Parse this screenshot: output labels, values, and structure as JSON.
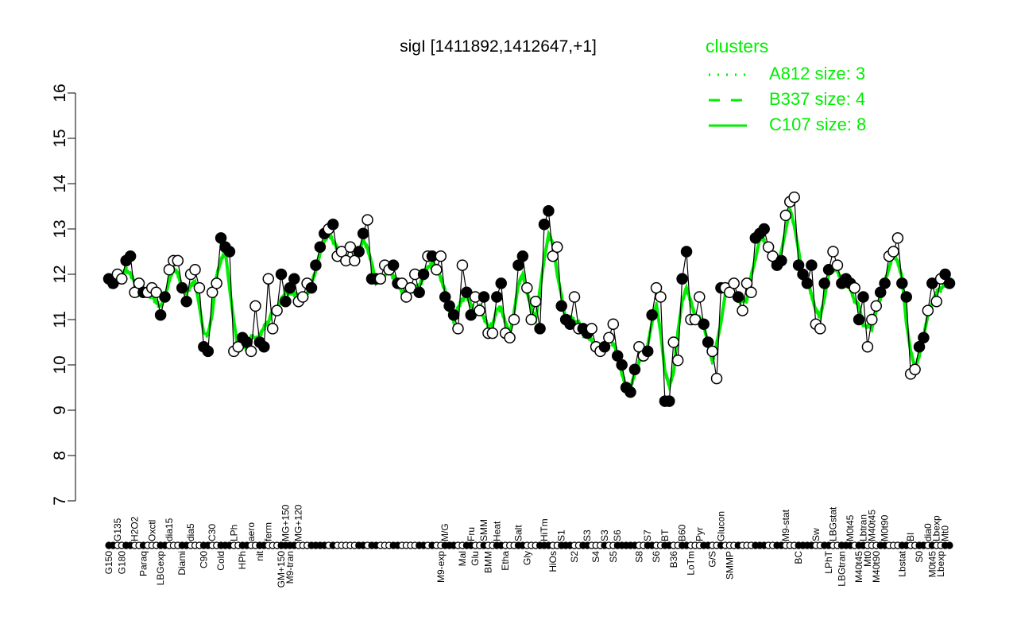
{
  "chart_data": {
    "type": "line",
    "title": "sigI [1411892,1412647,+1]",
    "xlabel": "",
    "ylabel": "",
    "ylim": [
      7,
      16
    ],
    "yticks": [
      7,
      8,
      9,
      10,
      11,
      12,
      13,
      14,
      15,
      16
    ],
    "grid": false,
    "legend": {
      "title": "clusters",
      "placement": "top-right",
      "entries": [
        {
          "label": "A812 size: 3",
          "style": "dotted"
        },
        {
          "label": "B337 size: 4",
          "style": "dashed"
        },
        {
          "label": "C107 size: 8",
          "style": "solid"
        }
      ]
    },
    "colors": {
      "clusters": "#00ee00",
      "points": "#000000"
    },
    "points": [
      [
        11.9,
        1,
        "G150"
      ],
      [
        11.8,
        1,
        ""
      ],
      [
        12.0,
        0,
        "G135"
      ],
      [
        11.9,
        0,
        "G180"
      ],
      [
        12.3,
        1,
        ""
      ],
      [
        12.4,
        1,
        ""
      ],
      [
        11.6,
        0,
        "H2O2"
      ],
      [
        11.8,
        0,
        ""
      ],
      [
        11.6,
        1,
        "Paraq"
      ],
      [
        11.6,
        0,
        ""
      ],
      [
        11.7,
        0,
        "Oxctl"
      ],
      [
        11.6,
        0,
        ""
      ],
      [
        11.1,
        1,
        "LBGexp"
      ],
      [
        11.5,
        1,
        ""
      ],
      [
        12.1,
        0,
        "dia15"
      ],
      [
        12.3,
        0,
        ""
      ],
      [
        12.3,
        0,
        ""
      ],
      [
        11.7,
        1,
        "Diami"
      ],
      [
        11.4,
        1,
        ""
      ],
      [
        12.0,
        0,
        "dia5"
      ],
      [
        12.1,
        0,
        ""
      ],
      [
        11.7,
        0,
        ""
      ],
      [
        10.4,
        1,
        "C90"
      ],
      [
        10.3,
        1,
        ""
      ],
      [
        11.6,
        0,
        "C30"
      ],
      [
        11.8,
        0,
        ""
      ],
      [
        12.8,
        1,
        "Cold"
      ],
      [
        12.6,
        1,
        ""
      ],
      [
        12.5,
        1,
        ""
      ],
      [
        10.3,
        0,
        "LPh"
      ],
      [
        10.4,
        0,
        ""
      ],
      [
        10.6,
        1,
        "HPh"
      ],
      [
        10.5,
        1,
        ""
      ],
      [
        10.3,
        0,
        "aero"
      ],
      [
        11.3,
        0,
        ""
      ],
      [
        10.5,
        1,
        "nit"
      ],
      [
        10.4,
        1,
        ""
      ],
      [
        11.9,
        0,
        "ferm"
      ],
      [
        10.8,
        0,
        ""
      ],
      [
        11.2,
        0,
        ""
      ],
      [
        12.0,
        1,
        "GM+150"
      ],
      [
        11.4,
        1,
        "MG+150"
      ],
      [
        11.7,
        1,
        "M9-tran"
      ],
      [
        11.9,
        1,
        ""
      ],
      [
        11.4,
        0,
        "MG+120"
      ],
      [
        11.5,
        0,
        ""
      ],
      [
        11.8,
        0,
        ""
      ],
      [
        11.7,
        1,
        ""
      ],
      [
        12.2,
        1,
        ""
      ],
      [
        12.6,
        1,
        ""
      ],
      [
        12.9,
        1,
        ""
      ],
      [
        13.0,
        0,
        ""
      ],
      [
        13.1,
        1,
        ""
      ],
      [
        12.4,
        0,
        ""
      ],
      [
        12.5,
        0,
        ""
      ],
      [
        12.3,
        0,
        ""
      ],
      [
        12.6,
        0,
        ""
      ],
      [
        12.3,
        0,
        ""
      ],
      [
        12.5,
        1,
        ""
      ],
      [
        12.9,
        1,
        ""
      ],
      [
        13.2,
        0,
        ""
      ],
      [
        11.9,
        1,
        ""
      ],
      [
        11.9,
        1,
        ""
      ],
      [
        11.9,
        0,
        ""
      ],
      [
        12.2,
        0,
        ""
      ],
      [
        12.1,
        0,
        ""
      ],
      [
        12.2,
        1,
        ""
      ],
      [
        11.8,
        1,
        ""
      ],
      [
        11.8,
        0,
        ""
      ],
      [
        11.5,
        0,
        ""
      ],
      [
        11.7,
        0,
        ""
      ],
      [
        12.0,
        0,
        ""
      ],
      [
        11.6,
        1,
        ""
      ],
      [
        12.0,
        1,
        ""
      ],
      [
        12.4,
        0,
        ""
      ],
      [
        12.4,
        1,
        ""
      ],
      [
        12.1,
        0,
        ""
      ],
      [
        12.4,
        0,
        "M9-exp"
      ],
      [
        11.5,
        1,
        "M/G"
      ],
      [
        11.3,
        1,
        ""
      ],
      [
        11.1,
        1,
        ""
      ],
      [
        10.8,
        0,
        ""
      ],
      [
        12.2,
        0,
        "Mal"
      ],
      [
        11.6,
        1,
        ""
      ],
      [
        11.1,
        1,
        "Fru"
      ],
      [
        11.5,
        0,
        "Glu"
      ],
      [
        11.2,
        0,
        ""
      ],
      [
        11.5,
        1,
        "SMM"
      ],
      [
        10.7,
        0,
        "BMM"
      ],
      [
        10.7,
        0,
        ""
      ],
      [
        11.5,
        1,
        "Heat"
      ],
      [
        11.8,
        1,
        ""
      ],
      [
        10.7,
        0,
        "Etha"
      ],
      [
        10.6,
        0,
        ""
      ],
      [
        11.0,
        0,
        ""
      ],
      [
        12.2,
        1,
        "Salt"
      ],
      [
        12.4,
        1,
        ""
      ],
      [
        11.7,
        0,
        "Gly"
      ],
      [
        11.0,
        0,
        ""
      ],
      [
        11.4,
        0,
        ""
      ],
      [
        10.8,
        1,
        ""
      ],
      [
        13.1,
        1,
        "HiTm"
      ],
      [
        13.4,
        1,
        ""
      ],
      [
        12.4,
        0,
        "HiOs"
      ],
      [
        12.6,
        0,
        ""
      ],
      [
        11.3,
        1,
        "S1"
      ],
      [
        11.0,
        1,
        ""
      ],
      [
        10.9,
        1,
        ""
      ],
      [
        11.5,
        0,
        "S2"
      ],
      [
        10.8,
        0,
        ""
      ],
      [
        10.8,
        1,
        ""
      ],
      [
        10.7,
        1,
        "S3"
      ],
      [
        10.8,
        0,
        ""
      ],
      [
        10.4,
        0,
        "S4"
      ],
      [
        10.3,
        0,
        ""
      ],
      [
        10.4,
        1,
        "S3"
      ],
      [
        10.6,
        0,
        ""
      ],
      [
        10.9,
        0,
        "S5"
      ],
      [
        10.2,
        1,
        "S6"
      ],
      [
        10.0,
        1,
        ""
      ],
      [
        9.5,
        1,
        ""
      ],
      [
        9.4,
        1,
        ""
      ],
      [
        9.9,
        1,
        ""
      ],
      [
        10.4,
        0,
        "S8"
      ],
      [
        10.2,
        0,
        ""
      ],
      [
        10.3,
        1,
        "S7"
      ],
      [
        11.1,
        1,
        ""
      ],
      [
        11.7,
        0,
        "S6"
      ],
      [
        11.5,
        0,
        ""
      ],
      [
        9.2,
        1,
        "BT"
      ],
      [
        9.2,
        1,
        ""
      ],
      [
        10.5,
        0,
        "B36"
      ],
      [
        10.1,
        0,
        ""
      ],
      [
        11.9,
        1,
        "B60"
      ],
      [
        12.5,
        1,
        ""
      ],
      [
        11.0,
        0,
        "LoTm"
      ],
      [
        11.0,
        0,
        ""
      ],
      [
        11.5,
        0,
        "Pyr"
      ],
      [
        10.9,
        1,
        ""
      ],
      [
        10.5,
        1,
        ""
      ],
      [
        10.3,
        0,
        "G/S"
      ],
      [
        9.7,
        0,
        ""
      ],
      [
        11.7,
        1,
        "Glucon"
      ],
      [
        11.7,
        0,
        ""
      ],
      [
        11.6,
        0,
        "SMMP"
      ],
      [
        11.8,
        0,
        ""
      ],
      [
        11.5,
        1,
        ""
      ],
      [
        11.2,
        0,
        ""
      ],
      [
        11.8,
        0,
        ""
      ],
      [
        11.6,
        0,
        ""
      ],
      [
        12.8,
        1,
        ""
      ],
      [
        12.9,
        1,
        ""
      ],
      [
        13.0,
        1,
        ""
      ],
      [
        12.6,
        0,
        ""
      ],
      [
        12.4,
        0,
        ""
      ],
      [
        12.2,
        1,
        ""
      ],
      [
        12.3,
        1,
        ""
      ],
      [
        13.3,
        0,
        "M9-stat"
      ],
      [
        13.6,
        0,
        ""
      ],
      [
        13.7,
        0,
        ""
      ],
      [
        12.2,
        1,
        "BC"
      ],
      [
        12.0,
        1,
        ""
      ],
      [
        11.8,
        1,
        ""
      ],
      [
        12.2,
        1,
        ""
      ],
      [
        10.9,
        0,
        "Sw"
      ],
      [
        10.8,
        0,
        ""
      ],
      [
        11.8,
        1,
        ""
      ],
      [
        12.1,
        1,
        "LPhT"
      ],
      [
        12.5,
        0,
        "LBGstat"
      ],
      [
        12.2,
        0,
        ""
      ],
      [
        11.8,
        1,
        "LBGtran"
      ],
      [
        11.9,
        1,
        ""
      ],
      [
        11.8,
        1,
        "M0t45"
      ],
      [
        11.7,
        0,
        ""
      ],
      [
        11.0,
        1,
        "M40t45"
      ],
      [
        11.5,
        1,
        "Lbtran"
      ],
      [
        10.4,
        0,
        "Mt0"
      ],
      [
        11.0,
        0,
        "M40t45"
      ],
      [
        11.3,
        0,
        "M40t90"
      ],
      [
        11.6,
        1,
        ""
      ],
      [
        11.8,
        1,
        "M0t90"
      ],
      [
        12.4,
        0,
        ""
      ],
      [
        12.5,
        0,
        ""
      ],
      [
        12.8,
        0,
        ""
      ],
      [
        11.8,
        1,
        "Lbstat"
      ],
      [
        11.5,
        1,
        ""
      ],
      [
        9.8,
        0,
        "BI"
      ],
      [
        9.9,
        0,
        ""
      ],
      [
        10.4,
        1,
        "S0"
      ],
      [
        10.6,
        1,
        ""
      ],
      [
        11.2,
        0,
        "dia0"
      ],
      [
        11.8,
        1,
        "M0t45"
      ],
      [
        11.4,
        0,
        "Lbexp"
      ],
      [
        11.9,
        0,
        "Lbexp"
      ],
      [
        12.0,
        1,
        "Mt0"
      ],
      [
        11.8,
        1,
        ""
      ]
    ]
  }
}
